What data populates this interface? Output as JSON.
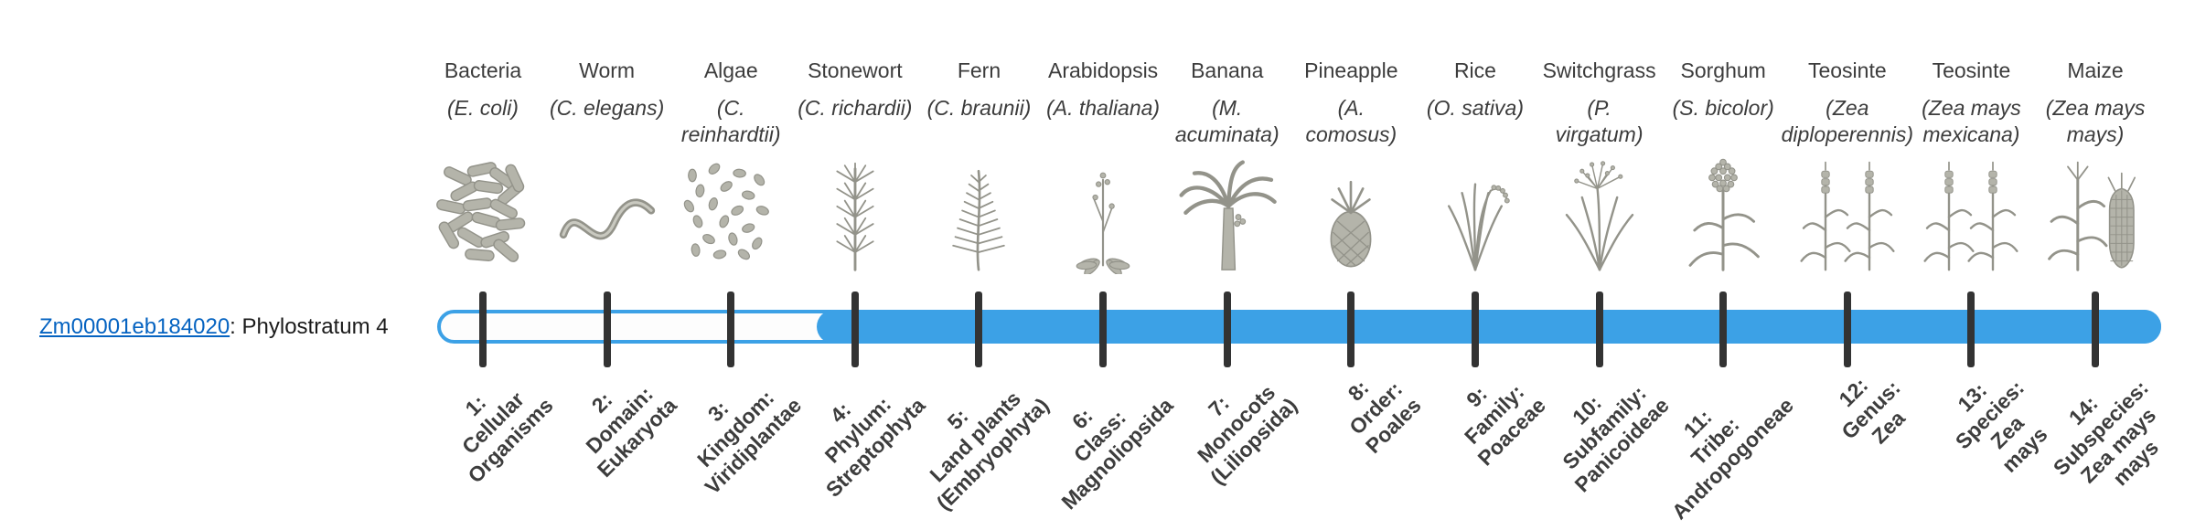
{
  "page": {
    "background_color": "#ffffff"
  },
  "gene": {
    "id": "Zm00001eb184020",
    "suffix": ": Phylostratum 4",
    "link_color": "#0563C1"
  },
  "timeline": {
    "bar_color": "#3CA1E6",
    "tick_color": "#333333",
    "illustration_color": "#93938a",
    "filled_from_stratum": 4,
    "strata": [
      {
        "index": 1,
        "organism": "Bacteria",
        "scientific": "(E. coli)",
        "icon": "bacteria-icon",
        "label": "1:\nCellular\nOrganisms"
      },
      {
        "index": 2,
        "organism": "Worm",
        "scientific": "(C. elegans)",
        "icon": "worm-icon",
        "label": "2:\nDomain:\nEukaryota"
      },
      {
        "index": 3,
        "organism": "Algae",
        "scientific": "(C.\nreinhardtii)",
        "icon": "algae-icon",
        "label": "3:\nKingdom:\nViridiplantae"
      },
      {
        "index": 4,
        "organism": "Stonewort",
        "scientific": "(C. richardii)",
        "icon": "stonewort-icon",
        "label": "4:\nPhylum:\nStreptophyta"
      },
      {
        "index": 5,
        "organism": "Fern",
        "scientific": "(C. braunii)",
        "icon": "fern-icon",
        "label": "5:\nLand plants\n(Embryophyta)"
      },
      {
        "index": 6,
        "organism": "Arabidopsis",
        "scientific": "(A. thaliana)",
        "icon": "arabidopsis-icon",
        "label": "6:\nClass:\nMagnoliopsida"
      },
      {
        "index": 7,
        "organism": "Banana",
        "scientific": "(M.\nacuminata)",
        "icon": "banana-icon",
        "label": "7:\nMonocots\n(Liliopsida)"
      },
      {
        "index": 8,
        "organism": "Pineapple",
        "scientific": "(A.\ncomosus)",
        "icon": "pineapple-icon",
        "label": "8:\nOrder:\nPoales"
      },
      {
        "index": 9,
        "organism": "Rice",
        "scientific": "(O. sativa)",
        "icon": "rice-icon",
        "label": "9:\nFamily:\nPoaceae"
      },
      {
        "index": 10,
        "organism": "Switchgrass",
        "scientific": "(P.\nvirgatum)",
        "icon": "switchgrass-icon",
        "label": "10:\nSubfamily:\nPanicoideae"
      },
      {
        "index": 11,
        "organism": "Sorghum",
        "scientific": "(S. bicolor)",
        "icon": "sorghum-icon",
        "label": "11:\nTribe:\nAndropogoneae"
      },
      {
        "index": 12,
        "organism": "Teosinte",
        "scientific": "(Zea\ndiploperennis)",
        "icon": "teosinte-icon",
        "label": "12:\nGenus:\nZea"
      },
      {
        "index": 13,
        "organism": "Teosinte",
        "scientific": "(Zea mays\nmexicana)",
        "icon": "teosinte-icon",
        "label": "13:\nSpecies:\nZea\nmays"
      },
      {
        "index": 14,
        "organism": "Maize",
        "scientific": "(Zea mays\nmays)",
        "icon": "maize-icon",
        "label": "14:\nSubspecies:\nZea mays\nmays"
      }
    ]
  },
  "chart_data": {
    "type": "bar",
    "orientation": "horizontal",
    "title": "",
    "rows": [
      {
        "gene": "Zm00001eb184020",
        "phylostratum": 4
      }
    ],
    "x_categories": [
      "1: Cellular Organisms",
      "2: Domain: Eukaryota",
      "3: Kingdom: Viridiplantae",
      "4: Phylum: Streptophyta",
      "5: Land plants (Embryophyta)",
      "6: Class: Magnoliopsida",
      "7: Monocots (Liliopsida)",
      "8: Order: Poales",
      "9: Family: Poaceae",
      "10: Subfamily: Panicoideae",
      "11: Tribe: Andropogoneae",
      "12: Genus: Zea",
      "13: Species: Zea mays",
      "14: Subspecies: Zea mays mays"
    ],
    "representatives": [
      "Bacteria (E. coli)",
      "Worm (C. elegans)",
      "Algae (C. reinhardtii)",
      "Stonewort (C. richardii)",
      "Fern (C. braunii)",
      "Arabidopsis (A. thaliana)",
      "Banana (M. acuminata)",
      "Pineapple (A. comosus)",
      "Rice (O. sativa)",
      "Switchgrass (P. virgatum)",
      "Sorghum (S. bicolor)",
      "Teosinte (Zea diploperennis)",
      "Teosinte (Zea mays mexicana)",
      "Maize (Zea mays mays)"
    ],
    "bar_span": {
      "from_stratum": 4,
      "to_stratum": 14
    },
    "legend": "off",
    "grid": "off"
  }
}
